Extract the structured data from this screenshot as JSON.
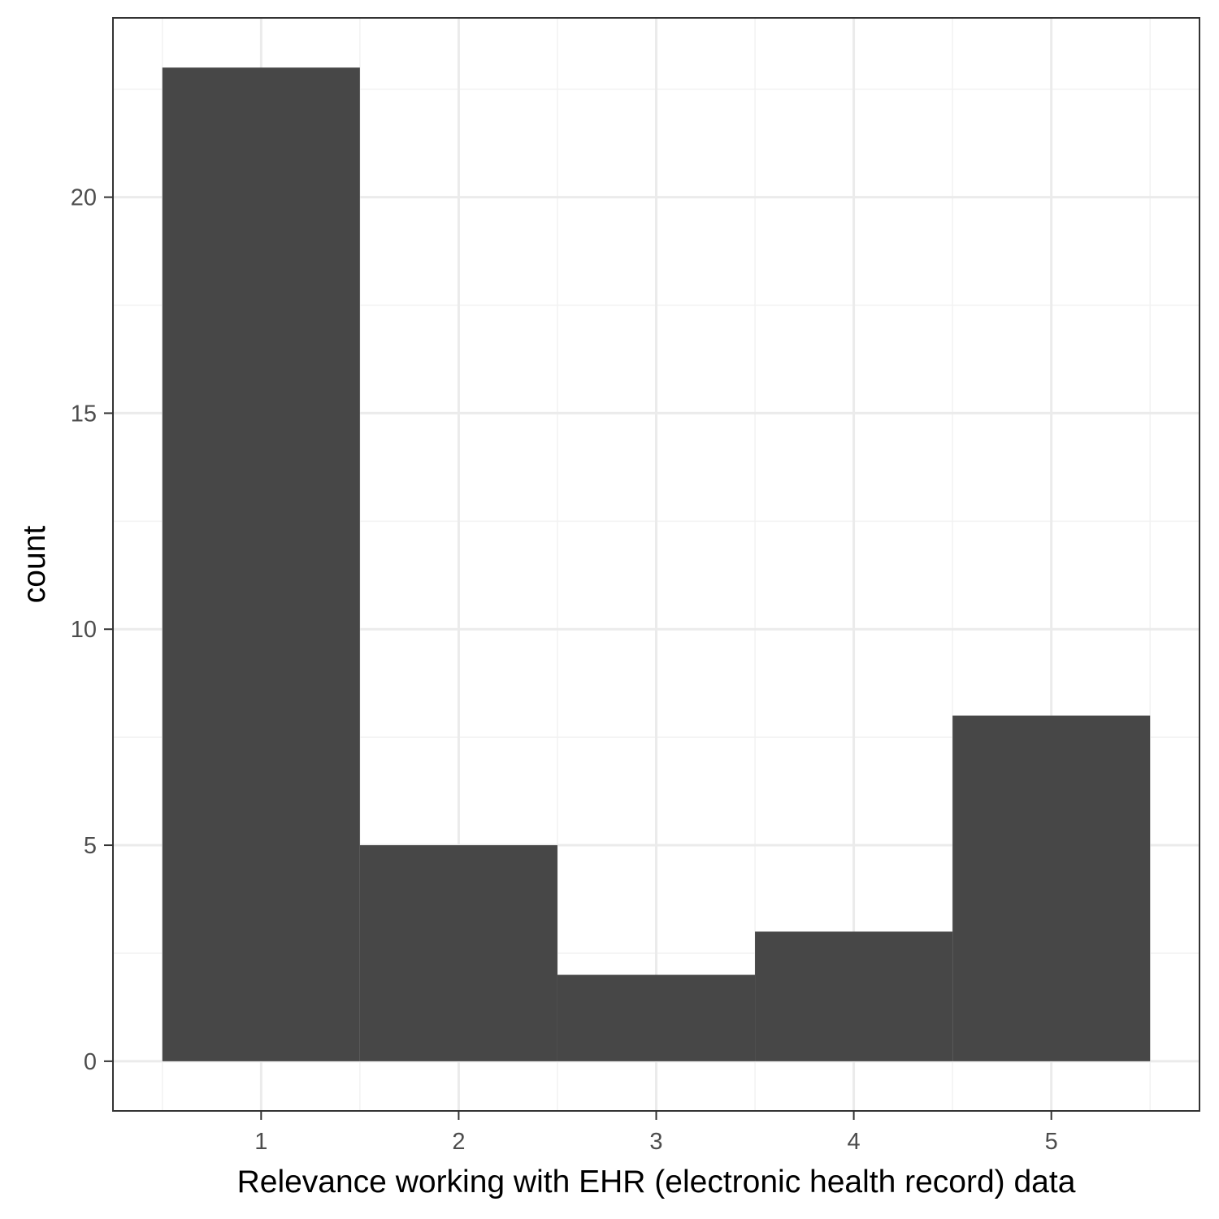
{
  "chart_data": {
    "type": "bar",
    "title": "",
    "xlabel": "Relevance working with EHR (electronic health record) data",
    "ylabel": "count",
    "categories": [
      "1",
      "2",
      "3",
      "4",
      "5"
    ],
    "x": [
      1,
      2,
      3,
      4,
      5
    ],
    "values": [
      23,
      5,
      2,
      3,
      8
    ],
    "xlim": [
      0.25,
      5.75
    ],
    "ylim": [
      -1.15,
      24.15
    ],
    "xticks": [
      "1",
      "2",
      "3",
      "4",
      "5"
    ],
    "yticks": [
      "0",
      "5",
      "10",
      "15",
      "20"
    ],
    "grid": true,
    "legend": "none",
    "colors": {
      "bar": "#474747",
      "panel_border": "#333333",
      "grid_major": "#ebebeb",
      "grid_minor": "#f2f2f2",
      "tick_text": "#4d4d4d"
    }
  }
}
